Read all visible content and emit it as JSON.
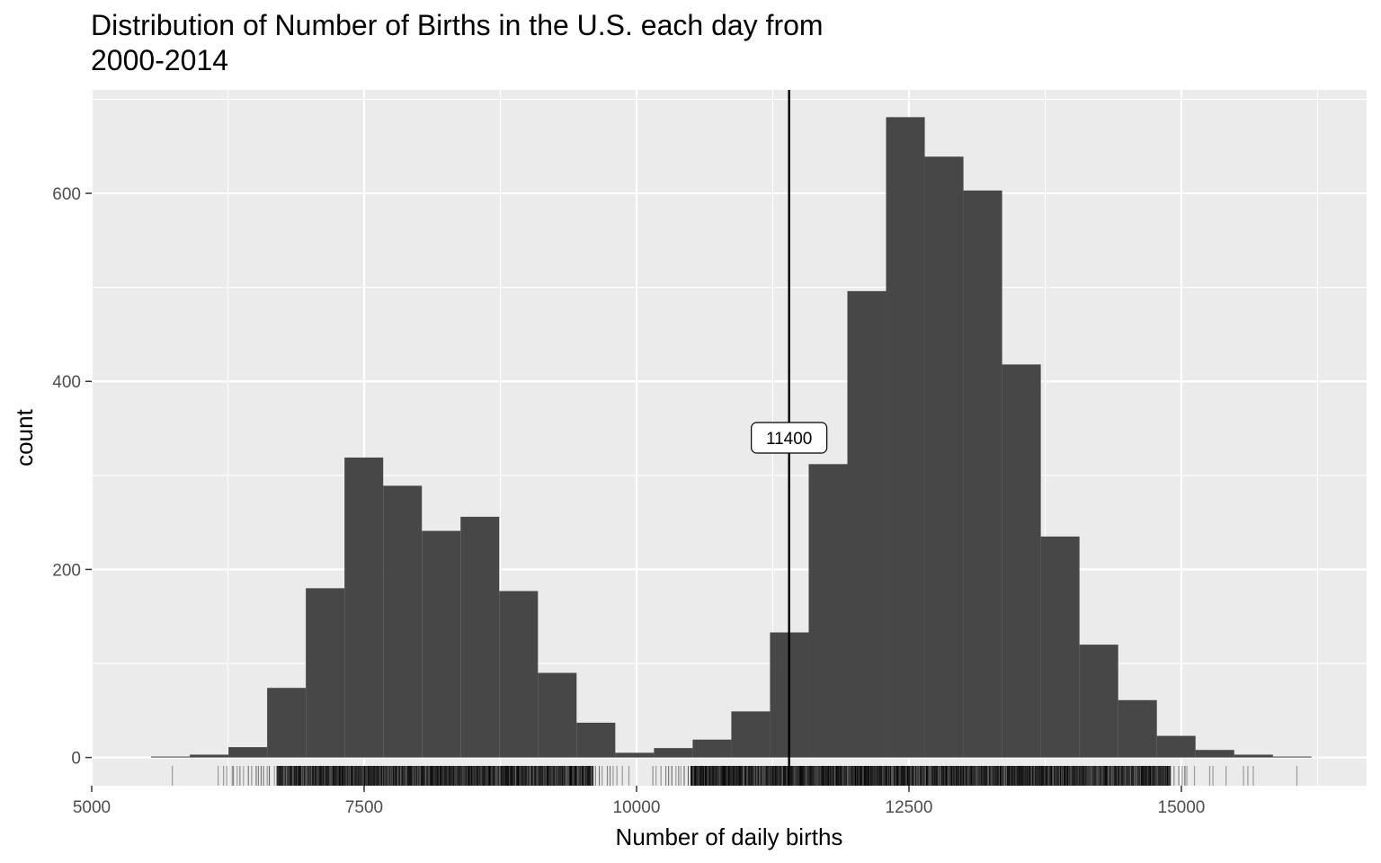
{
  "chart_data": {
    "type": "bar",
    "title_lines": [
      "Distribution of Number of Births in the U.S. each day from",
      "2000-2014"
    ],
    "xlabel": "Number of daily births",
    "ylabel": "count",
    "xlim": [
      5000,
      16700
    ],
    "ylim": [
      -30,
      710
    ],
    "x_ticks": [
      5000,
      7500,
      10000,
      12500,
      15000
    ],
    "x_tick_labels": [
      "5000",
      "7500",
      "10000",
      "12500",
      "15000"
    ],
    "x_minor_ticks": [
      6250,
      8750,
      11250,
      13750,
      16250
    ],
    "y_ticks": [
      0,
      200,
      400,
      600
    ],
    "y_tick_labels": [
      "0",
      "200",
      "400",
      "600"
    ],
    "y_minor_ticks": [
      100,
      300,
      500,
      700
    ],
    "bin_width": 355,
    "bins": [
      {
        "start": 5545,
        "count": 1
      },
      {
        "start": 5900,
        "count": 3
      },
      {
        "start": 6255,
        "count": 11
      },
      {
        "start": 6610,
        "count": 74
      },
      {
        "start": 6965,
        "count": 180
      },
      {
        "start": 7320,
        "count": 319
      },
      {
        "start": 7675,
        "count": 289
      },
      {
        "start": 8030,
        "count": 241
      },
      {
        "start": 8385,
        "count": 256
      },
      {
        "start": 8740,
        "count": 177
      },
      {
        "start": 9095,
        "count": 90
      },
      {
        "start": 9450,
        "count": 37
      },
      {
        "start": 9805,
        "count": 5
      },
      {
        "start": 10160,
        "count": 10
      },
      {
        "start": 10515,
        "count": 19
      },
      {
        "start": 10870,
        "count": 49
      },
      {
        "start": 11225,
        "count": 133
      },
      {
        "start": 11580,
        "count": 312
      },
      {
        "start": 11935,
        "count": 496
      },
      {
        "start": 12290,
        "count": 681
      },
      {
        "start": 12645,
        "count": 639
      },
      {
        "start": 13000,
        "count": 603
      },
      {
        "start": 13355,
        "count": 418
      },
      {
        "start": 13710,
        "count": 235
      },
      {
        "start": 14065,
        "count": 120
      },
      {
        "start": 14420,
        "count": 61
      },
      {
        "start": 14775,
        "count": 23
      },
      {
        "start": 15130,
        "count": 8
      },
      {
        "start": 15485,
        "count": 3
      },
      {
        "start": 15840,
        "count": 1
      }
    ],
    "vline": {
      "x": 11400,
      "label": "11400",
      "label_y": 340
    },
    "rug": {
      "isolated": [
        5740,
        6160,
        6210,
        6240,
        6290,
        9820,
        9870,
        9930,
        15050,
        15120,
        15260,
        15290,
        15410,
        15570,
        15610,
        15660,
        16060
      ],
      "dense_ranges": [
        [
          6700,
          9600
        ],
        [
          10500,
          14900
        ]
      ],
      "sparse_ranges": [
        [
          6300,
          6700
        ],
        [
          9600,
          9820
        ],
        [
          10150,
          10500
        ],
        [
          14900,
          15050
        ]
      ]
    },
    "colors": {
      "panel": "#ebebeb",
      "grid": "#ffffff",
      "bar": "#474747",
      "vline": "#000000",
      "rug": "#000000",
      "tick_label": "#4d4d4d"
    },
    "grid": true,
    "legend": "none"
  }
}
